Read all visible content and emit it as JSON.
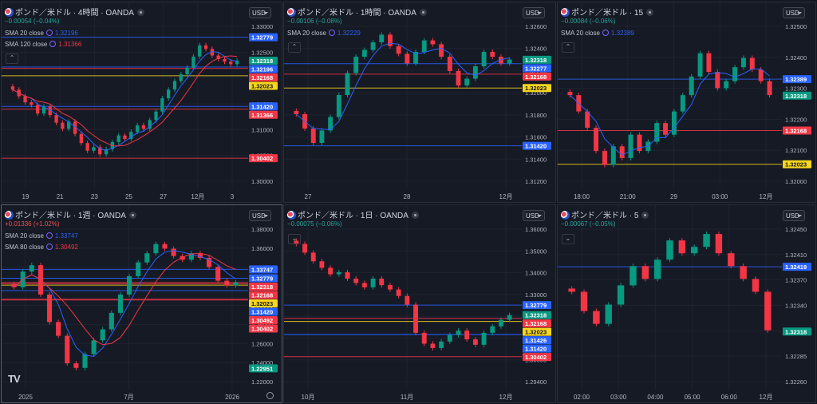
{
  "panes": [
    {
      "id": "p1",
      "title": "ポンド／米ドル · 4時間 · OANDA",
      "change": "−0.00054 (−0.04%)",
      "dir": "dn",
      "smas": [
        {
          "label": "SMA 20 close",
          "value": "1.32196",
          "color": "#2962ff"
        },
        {
          "label": "SMA 120 close",
          "value": "1.31366",
          "color": "#f23645"
        }
      ],
      "currency": "USD",
      "collapse": "^",
      "yticks": [
        "1.33000",
        "1.32500",
        "1.32000",
        "1.31500",
        "1.31000",
        "1.30500",
        "1.30000"
      ],
      "xticks": [
        "19",
        "21",
        "23",
        "25",
        "27",
        "12月",
        "3"
      ],
      "price_tags": [
        {
          "v": "1.32779",
          "c": "#2962ff"
        },
        {
          "v": "1.32318",
          "c": "#089981"
        },
        {
          "v": "1.32196",
          "c": "#2962ff"
        },
        {
          "v": "1.32168",
          "c": "#f23645"
        },
        {
          "v": "1.32023",
          "c": "#f7d61d"
        },
        {
          "v": "1.31420",
          "c": "#2962ff"
        },
        {
          "v": "1.31366",
          "c": "#f23645"
        },
        {
          "v": "1.30402",
          "c": "#f23645"
        }
      ]
    },
    {
      "id": "p2",
      "title": "ポンド／米ドル · 1時間 · OANDA",
      "change": "−0.00106 (−0.08%)",
      "dir": "dn",
      "smas": [
        {
          "label": "SMA 20 close",
          "value": "1.32229",
          "color": "#2962ff"
        }
      ],
      "currency": "USD",
      "collapse": "^",
      "yticks": [
        "1.32600",
        "1.32400",
        "1.32200",
        "1.32000",
        "1.31800",
        "1.31600",
        "1.31400",
        "1.31200"
      ],
      "xticks": [
        "27",
        "28",
        "12月"
      ],
      "price_tags": [
        {
          "v": "1.32318",
          "c": "#089981"
        },
        {
          "v": "1.32277",
          "c": "#2962ff"
        },
        {
          "v": "1.32168",
          "c": "#f23645"
        },
        {
          "v": "1.32023",
          "c": "#f7d61d"
        },
        {
          "v": "1.31420",
          "c": "#2962ff"
        }
      ]
    },
    {
      "id": "p3",
      "title": "ポンド／米ドル · 15",
      "change": "−0.00084 (−0.06%)",
      "dir": "dn",
      "smas": [
        {
          "label": "SMA 20 close",
          "value": "1.32389",
          "color": "#2962ff"
        }
      ],
      "currency": "USD",
      "collapse": "^",
      "yticks": [
        "1.32500",
        "1.32400",
        "1.32300",
        "1.32200",
        "1.32100",
        "1.32000"
      ],
      "xticks": [
        "18:00",
        "21:00",
        "29",
        "03:00",
        "12月"
      ],
      "price_tags": [
        {
          "v": "1.32389",
          "c": "#2962ff"
        },
        {
          "v": "1.32318",
          "c": "#089981"
        },
        {
          "v": "1.32168",
          "c": "#f23645"
        },
        {
          "v": "1.32023",
          "c": "#f7d61d"
        }
      ]
    },
    {
      "id": "p4",
      "title": "ポンド／米ドル · 1週 · OANDA",
      "change": "+0.01336 (+1.02%)",
      "dir": "dn",
      "smas": [
        {
          "label": "SMA 20 close",
          "value": "1.33747",
          "color": "#2962ff"
        },
        {
          "label": "SMA 80 close",
          "value": "1.30492",
          "color": "#f23645"
        }
      ],
      "currency": "USD",
      "collapse": "",
      "yticks": [
        "1.38000",
        "1.36000",
        "1.34000",
        "1.32000",
        "1.30000",
        "1.28000",
        "1.26000",
        "1.24000",
        "1.22000"
      ],
      "xticks": [
        "2025",
        "7月",
        "2026"
      ],
      "price_tags": [
        {
          "v": "1.33747",
          "c": "#2962ff"
        },
        {
          "v": "1.32779",
          "c": "#2962ff"
        },
        {
          "v": "1.32318",
          "c": "#f23645"
        },
        {
          "v": "1.32168",
          "c": "#f23645"
        },
        {
          "v": "1.32023",
          "c": "#f7d61d"
        },
        {
          "v": "1.31420",
          "c": "#2962ff"
        },
        {
          "v": "1.30492",
          "c": "#f23645"
        },
        {
          "v": "1.30402",
          "c": "#f23645"
        },
        {
          "v": "1.22951",
          "c": "#089981"
        }
      ]
    },
    {
      "id": "p5",
      "title": "ポンド／米ドル · 1日 · OANDA",
      "change": "−0.00075 (−0.06%)",
      "dir": "up",
      "smas": [],
      "currency": "USD",
      "collapse": "v",
      "yticks": [
        "1.36000",
        "1.35000",
        "1.34000",
        "1.33000",
        "1.32000",
        "1.31000",
        "1.30000",
        "1.29400"
      ],
      "xticks": [
        "10月",
        "11月",
        "12月"
      ],
      "price_tags": [
        {
          "v": "1.32779",
          "c": "#2962ff"
        },
        {
          "v": "1.32318",
          "c": "#089981"
        },
        {
          "v": "1.32168",
          "c": "#f23645"
        },
        {
          "v": "1.32023",
          "c": "#f7d61d"
        },
        {
          "v": "1.31426",
          "c": "#2962ff"
        },
        {
          "v": "1.31420",
          "c": "#2962ff"
        },
        {
          "v": "1.30402",
          "c": "#f23645"
        }
      ]
    },
    {
      "id": "p6",
      "title": "ポンド／米ドル · 5",
      "change": "−0.00067 (−0.05%)",
      "dir": "up",
      "smas": [],
      "currency": "USD",
      "collapse": "v",
      "yticks": [
        "1.32450",
        "1.32410",
        "1.32370",
        "1.32340",
        "1.32310",
        "1.32285",
        "1.32260"
      ],
      "xticks": [
        "02:00",
        "03:00",
        "04:00",
        "05:00",
        "06:00",
        "12月"
      ],
      "price_tags": [
        {
          "v": "1.32419",
          "c": "#2962ff"
        },
        {
          "v": "1.32318",
          "c": "#089981"
        }
      ]
    }
  ],
  "branding": {
    "logo": "TV"
  },
  "chart_data": [
    {
      "type": "candlestick",
      "title": "ポンド／米ドル · 4時間 · OANDA",
      "ylim": [
        1.2995,
        1.3315
      ],
      "x": [
        "19",
        "21",
        "23",
        "25",
        "27",
        "12月",
        "3"
      ],
      "closes": [
        1.3175,
        1.3162,
        1.315,
        1.3145,
        1.3128,
        1.3142,
        1.3125,
        1.311,
        1.3098,
        1.3112,
        1.3088,
        1.307,
        1.3055,
        1.3062,
        1.3048,
        1.3058,
        1.3072,
        1.3085,
        1.3078,
        1.3092,
        1.3105,
        1.3098,
        1.3115,
        1.3132,
        1.3158,
        1.3175,
        1.3192,
        1.3205,
        1.3218,
        1.324,
        1.3262,
        1.3255,
        1.3242,
        1.3235,
        1.323,
        1.3225,
        1.3232
      ]
    },
    {
      "type": "candlestick",
      "title": "ポンド／米ドル · 1時間 · OANDA",
      "ylim": [
        1.3105,
        1.3275
      ],
      "x": [
        "27",
        "28",
        "12月"
      ],
      "closes": [
        1.3175,
        1.316,
        1.3145,
        1.3158,
        1.3172,
        1.3195,
        1.3218,
        1.3235,
        1.3242,
        1.325,
        1.3258,
        1.3246,
        1.3238,
        1.3228,
        1.324,
        1.3252,
        1.3248,
        1.3235,
        1.322,
        1.3205,
        1.3212,
        1.3225,
        1.324,
        1.3235,
        1.3228,
        1.3232
      ]
    },
    {
      "type": "candlestick",
      "title": "ポンド／米ドル · 15",
      "ylim": [
        1.3195,
        1.3265
      ],
      "x": [
        "18:00",
        "21:00",
        "29",
        "03:00",
        "12月"
      ],
      "closes": [
        1.3232,
        1.3225,
        1.3218,
        1.3208,
        1.3202,
        1.321,
        1.3205,
        1.3215,
        1.3208,
        1.3212,
        1.322,
        1.3215,
        1.3225,
        1.3232,
        1.324,
        1.325,
        1.3242,
        1.3235,
        1.3238,
        1.3244,
        1.3248,
        1.3243,
        1.3238,
        1.3232
      ]
    },
    {
      "type": "candlestick",
      "title": "ポンド／米ドル · 1週 · OANDA",
      "ylim": [
        1.215,
        1.39
      ],
      "x": [
        "2025",
        "7月",
        "2026"
      ],
      "closes": [
        1.318,
        1.335,
        1.342,
        1.31,
        1.28,
        1.265,
        1.235,
        1.23,
        1.245,
        1.26,
        1.272,
        1.29,
        1.31,
        1.33,
        1.345,
        1.355,
        1.365,
        1.36,
        1.352,
        1.348,
        1.355,
        1.35,
        1.34,
        1.325,
        1.32,
        1.3232
      ]
    },
    {
      "type": "candlestick",
      "title": "ポンド／米ドル · 1日 · OANDA",
      "ylim": [
        1.2925,
        1.3665
      ],
      "x": [
        "10月",
        "11月",
        "12月"
      ],
      "closes": [
        1.356,
        1.352,
        1.348,
        1.345,
        1.342,
        1.343,
        1.34,
        1.338,
        1.336,
        1.34,
        1.337,
        1.335,
        1.332,
        1.328,
        1.315,
        1.31,
        1.308,
        1.311,
        1.314,
        1.316,
        1.312,
        1.3095,
        1.315,
        1.318,
        1.321,
        1.3232
      ]
    },
    {
      "type": "candlestick",
      "title": "ポンド／米ドル · 5",
      "ylim": [
        1.3224,
        1.3249
      ],
      "x": [
        "02:00",
        "03:00",
        "04:00",
        "05:00",
        "06:00",
        "12月"
      ],
      "closes": [
        1.3238,
        1.3235,
        1.3233,
        1.3236,
        1.3239,
        1.3242,
        1.324,
        1.3243,
        1.3246,
        1.3244,
        1.3245,
        1.3247,
        1.3244,
        1.3242,
        1.324,
        1.3238,
        1.3232
      ]
    }
  ]
}
